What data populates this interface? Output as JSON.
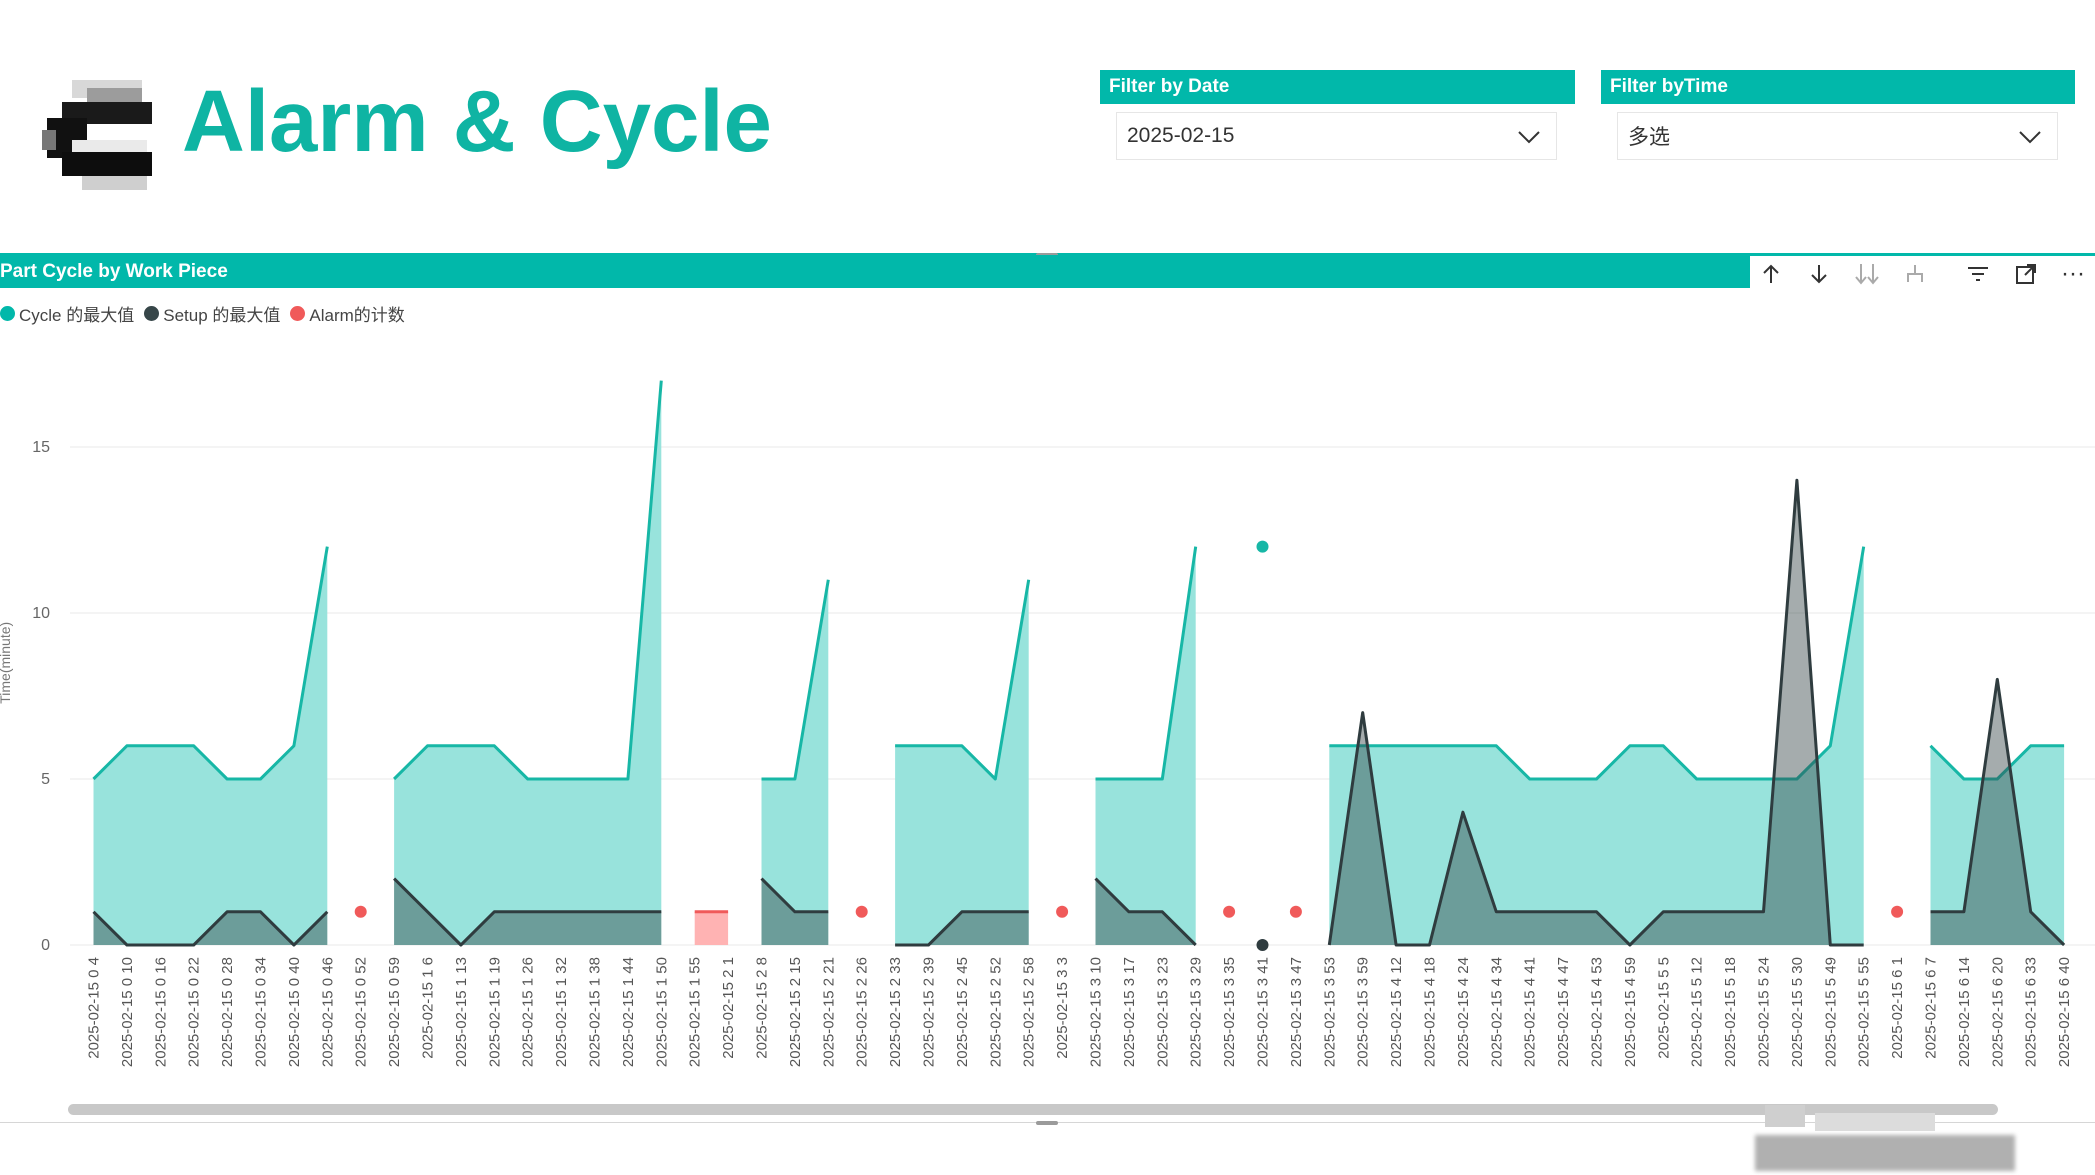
{
  "header": {
    "title": "Alarm & Cycle"
  },
  "filters": [
    {
      "label": "Filter by Date",
      "value": "2025-02-15"
    },
    {
      "label": "Filter byTime",
      "value": "多选"
    }
  ],
  "visual": {
    "title": "Part Cycle by Work Piece",
    "toolbar": [
      "arrow-up-icon",
      "arrow-down-icon",
      "expand-all-down-icon",
      "drill-hierarchy-icon",
      "filter-icon",
      "focus-mode-icon",
      "more-options-icon"
    ],
    "more_glyph": "···"
  },
  "colors": {
    "accent": "#01b8aa",
    "cycle_fill": "#98e3dc",
    "setup": "#374649",
    "alarm": "#f05a5a"
  },
  "chart_data": {
    "type": "area",
    "ylabel": "Time(minute)",
    "ylim": [
      0,
      17
    ],
    "yticks": [
      "0",
      "5",
      "10",
      "15"
    ],
    "grid": true,
    "legend_position": "top-left",
    "categories": [
      "2025-02-15 0 4",
      "2025-02-15 0 10",
      "2025-02-15 0 16",
      "2025-02-15 0 22",
      "2025-02-15 0 28",
      "2025-02-15 0 34",
      "2025-02-15 0 40",
      "2025-02-15 0 46",
      "2025-02-15 0 52",
      "2025-02-15 0 59",
      "2025-02-15 1 6",
      "2025-02-15 1 13",
      "2025-02-15 1 19",
      "2025-02-15 1 26",
      "2025-02-15 1 32",
      "2025-02-15 1 38",
      "2025-02-15 1 44",
      "2025-02-15 1 50",
      "2025-02-15 1 55",
      "2025-02-15 2 1",
      "2025-02-15 2 8",
      "2025-02-15 2 15",
      "2025-02-15 2 21",
      "2025-02-15 2 26",
      "2025-02-15 2 33",
      "2025-02-15 2 39",
      "2025-02-15 2 45",
      "2025-02-15 2 52",
      "2025-02-15 2 58",
      "2025-02-15 3 3",
      "2025-02-15 3 10",
      "2025-02-15 3 17",
      "2025-02-15 3 23",
      "2025-02-15 3 29",
      "2025-02-15 3 35",
      "2025-02-15 3 41",
      "2025-02-15 3 47",
      "2025-02-15 3 53",
      "2025-02-15 3 59",
      "2025-02-15 4 12",
      "2025-02-15 4 18",
      "2025-02-15 4 24",
      "2025-02-15 4 34",
      "2025-02-15 4 41",
      "2025-02-15 4 47",
      "2025-02-15 4 53",
      "2025-02-15 4 59",
      "2025-02-15 5 5",
      "2025-02-15 5 12",
      "2025-02-15 5 18",
      "2025-02-15 5 24",
      "2025-02-15 5 30",
      "2025-02-15 5 49",
      "2025-02-15 5 55",
      "2025-02-15 6 1",
      "2025-02-15 6 7",
      "2025-02-15 6 14",
      "2025-02-15 6 20",
      "2025-02-15 6 33",
      "2025-02-15 6 40"
    ],
    "series": [
      {
        "name": "Cycle 的最大值",
        "values": [
          5,
          6,
          6,
          6,
          5,
          5,
          6,
          12,
          null,
          5,
          6,
          6,
          6,
          5,
          5,
          5,
          5,
          17,
          null,
          null,
          5,
          5,
          11,
          null,
          6,
          6,
          6,
          5,
          11,
          null,
          5,
          5,
          5,
          12,
          null,
          12,
          null,
          6,
          6,
          6,
          6,
          6,
          6,
          5,
          5,
          5,
          6,
          6,
          5,
          5,
          5,
          5,
          6,
          12,
          null,
          6,
          5,
          5,
          6,
          6
        ]
      },
      {
        "name": "Setup 的最大值",
        "values": [
          1,
          0,
          0,
          0,
          1,
          1,
          0,
          1,
          null,
          2,
          1,
          0,
          1,
          1,
          1,
          1,
          1,
          1,
          null,
          null,
          2,
          1,
          1,
          null,
          0,
          0,
          1,
          1,
          1,
          null,
          2,
          1,
          1,
          0,
          null,
          0,
          null,
          0,
          7,
          0,
          0,
          4,
          1,
          1,
          1,
          1,
          0,
          1,
          1,
          1,
          1,
          14,
          0,
          0,
          null,
          1,
          1,
          8,
          1,
          0
        ]
      },
      {
        "name": "Alarm的计数",
        "values": [
          null,
          null,
          null,
          null,
          null,
          null,
          null,
          null,
          1,
          null,
          null,
          null,
          null,
          null,
          null,
          null,
          null,
          null,
          1,
          1,
          null,
          null,
          null,
          1,
          null,
          null,
          null,
          null,
          null,
          1,
          null,
          null,
          null,
          null,
          1,
          null,
          1,
          null,
          null,
          null,
          null,
          null,
          null,
          null,
          null,
          null,
          null,
          null,
          null,
          null,
          null,
          null,
          null,
          null,
          1,
          null,
          null,
          null,
          null,
          null
        ]
      }
    ]
  }
}
